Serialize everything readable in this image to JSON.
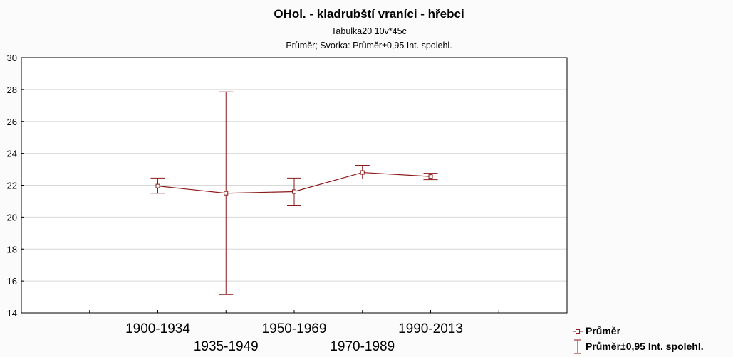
{
  "chart_data": {
    "type": "line",
    "title": "OHol. - kladrubští vraníci - hřebci",
    "subtitle": "Tabulka20 10v*45c",
    "subtitle2": "Průměr; Svorka: Průměr±0,95 Int. spolehl.",
    "categories": [
      "1900-1934",
      "1935-1949",
      "1950-1969",
      "1970-1989",
      "1990-2013"
    ],
    "series": [
      {
        "name": "Průměr",
        "values": [
          21.95,
          21.5,
          21.6,
          22.8,
          22.55
        ],
        "ci_low": [
          21.5,
          15.15,
          20.75,
          22.4,
          22.35
        ],
        "ci_high": [
          22.45,
          27.85,
          22.45,
          23.25,
          22.75
        ]
      }
    ],
    "ci_label": "Průměr±0,95 Int. spolehl.",
    "ylim": [
      14,
      30
    ],
    "yticks": [
      14,
      16,
      18,
      20,
      22,
      24,
      26,
      28,
      30
    ],
    "grid": true,
    "legend": "bottom-right",
    "colors": {
      "series": "#8b1a1a",
      "grid": "#d8d8d8",
      "frame": "#000000",
      "background": "#fbfbfb"
    }
  }
}
